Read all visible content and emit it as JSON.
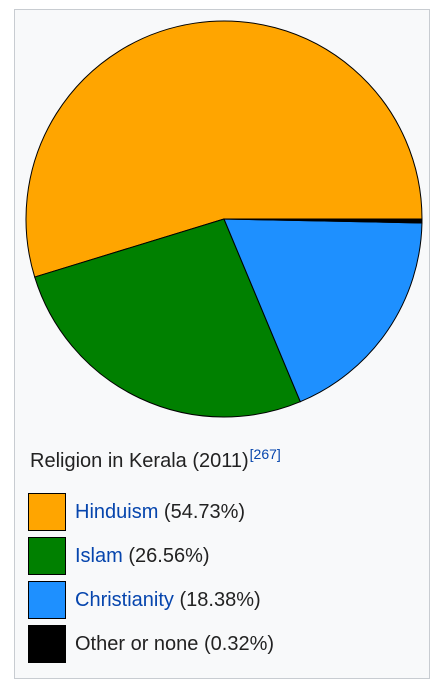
{
  "chart_data": {
    "type": "pie",
    "title": "Religion in Kerala (2011)",
    "reference": "[267]",
    "categories": [
      "Hinduism",
      "Islam",
      "Christianity",
      "Other or none"
    ],
    "values": [
      54.73,
      26.56,
      18.38,
      0.32
    ],
    "value_labels": [
      "(54.73%)",
      "(26.56%)",
      "(18.38%)",
      "(0.32%)"
    ],
    "colors": [
      "#ffa500",
      "#008000",
      "#1e90ff",
      "#000000"
    ],
    "linked": [
      true,
      true,
      true,
      false
    ]
  }
}
